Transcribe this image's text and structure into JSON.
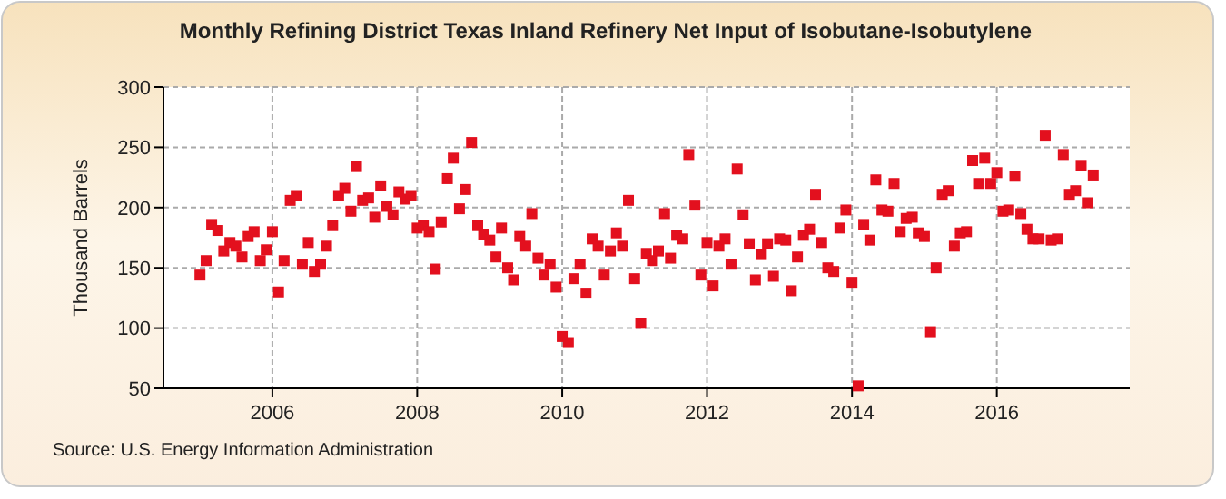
{
  "chart_data": {
    "type": "scatter",
    "title": "Monthly Refining District Texas Inland Refinery Net Input of Isobutane-Isobutylene",
    "ylabel": "Thousand Barrels",
    "annotations": [
      "Source: U.S. Energy Information Administration"
    ],
    "x": [
      "2005-01",
      "2005-02",
      "2005-03",
      "2005-04",
      "2005-05",
      "2005-06",
      "2005-07",
      "2005-08",
      "2005-09",
      "2005-10",
      "2005-11",
      "2005-12",
      "2006-01",
      "2006-02",
      "2006-03",
      "2006-04",
      "2006-05",
      "2006-06",
      "2006-07",
      "2006-08",
      "2006-09",
      "2006-10",
      "2006-11",
      "2006-12",
      "2007-01",
      "2007-02",
      "2007-03",
      "2007-04",
      "2007-05",
      "2007-06",
      "2007-07",
      "2007-08",
      "2007-09",
      "2007-10",
      "2007-11",
      "2007-12",
      "2008-01",
      "2008-02",
      "2008-03",
      "2008-04",
      "2008-05",
      "2008-06",
      "2008-07",
      "2008-08",
      "2008-09",
      "2008-10",
      "2008-11",
      "2008-12",
      "2009-01",
      "2009-02",
      "2009-03",
      "2009-04",
      "2009-05",
      "2009-06",
      "2009-07",
      "2009-08",
      "2009-09",
      "2009-10",
      "2009-11",
      "2009-12",
      "2010-01",
      "2010-02",
      "2010-03",
      "2010-04",
      "2010-05",
      "2010-06",
      "2010-07",
      "2010-08",
      "2010-09",
      "2010-10",
      "2010-11",
      "2010-12",
      "2011-01",
      "2011-02",
      "2011-03",
      "2011-04",
      "2011-05",
      "2011-06",
      "2011-07",
      "2011-08",
      "2011-09",
      "2011-10",
      "2011-11",
      "2011-12",
      "2012-01",
      "2012-02",
      "2012-03",
      "2012-04",
      "2012-05",
      "2012-06",
      "2012-07",
      "2012-08",
      "2012-09",
      "2012-10",
      "2012-11",
      "2012-12",
      "2013-01",
      "2013-02",
      "2013-03",
      "2013-04",
      "2013-05",
      "2013-06",
      "2013-07",
      "2013-08",
      "2013-09",
      "2013-10",
      "2013-11",
      "2013-12",
      "2014-01",
      "2014-02",
      "2014-03",
      "2014-04",
      "2014-05",
      "2014-06",
      "2014-07",
      "2014-08",
      "2014-09",
      "2014-10",
      "2014-11",
      "2014-12",
      "2015-01",
      "2015-02",
      "2015-03",
      "2015-04",
      "2015-05",
      "2015-06",
      "2015-07",
      "2015-08",
      "2015-09",
      "2015-10",
      "2015-11",
      "2015-12",
      "2016-01",
      "2016-02",
      "2016-03",
      "2016-04",
      "2016-05",
      "2016-06",
      "2016-07",
      "2016-08",
      "2016-09",
      "2016-10",
      "2016-11",
      "2016-12",
      "2017-01",
      "2017-02",
      "2017-03",
      "2017-04",
      "2017-05"
    ],
    "series": [
      {
        "color": "#e3101e",
        "values": [
          144,
          156,
          186,
          181,
          164,
          171,
          168,
          159,
          176,
          180,
          156,
          165,
          180,
          130,
          156,
          206,
          210,
          153,
          171,
          147,
          153,
          168,
          185,
          210,
          216,
          197,
          234,
          206,
          208,
          192,
          218,
          201,
          194,
          213,
          207,
          210,
          183,
          185,
          180,
          149,
          188,
          224,
          241,
          199,
          215,
          254,
          185,
          178,
          173,
          159,
          183,
          150,
          140,
          176,
          168,
          195,
          158,
          144,
          153,
          134,
          93,
          88,
          141,
          153,
          129,
          174,
          168,
          144,
          164,
          179,
          168,
          206,
          141,
          104,
          162,
          156,
          164,
          195,
          158,
          177,
          174,
          244,
          202,
          144,
          171,
          135,
          168,
          174,
          153,
          232,
          194,
          170,
          140,
          161,
          170,
          143,
          174,
          173,
          131,
          159,
          177,
          182,
          211,
          171,
          150,
          147,
          183,
          198,
          138,
          52,
          186,
          173,
          223,
          198,
          197,
          220,
          180,
          191,
          192,
          179,
          176,
          97,
          150,
          211,
          214,
          168,
          179,
          180,
          239,
          220,
          241,
          220,
          229,
          197,
          198,
          226,
          195,
          182,
          174,
          174,
          260,
          173,
          174,
          244,
          211,
          214,
          235,
          204,
          227
        ]
      }
    ],
    "xlim": [
      "2004-07",
      "2017-11"
    ],
    "xticks": [
      "2006",
      "2008",
      "2010",
      "2012",
      "2014",
      "2016"
    ],
    "ylim": [
      50,
      300
    ],
    "yticks": [
      50,
      100,
      150,
      200,
      250,
      300
    ],
    "grid": true,
    "marker": "square"
  }
}
